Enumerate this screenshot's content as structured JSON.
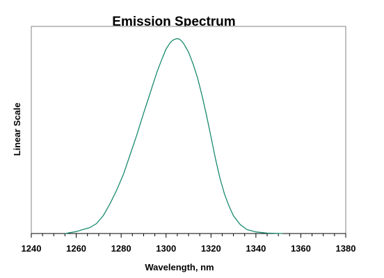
{
  "chart_data": {
    "type": "line",
    "title": "Emission Spectrum",
    "xlabel": "Wavelength, nm",
    "ylabel": "Linear Scale",
    "xlim": [
      1240,
      1380
    ],
    "ylim": [
      0,
      1.05
    ],
    "x_ticks": [
      1240,
      1260,
      1280,
      1300,
      1320,
      1340,
      1360,
      1380
    ],
    "x_minor_step": 5,
    "y_tick_labels_shown": false,
    "grid": false,
    "legend": "none",
    "series": [
      {
        "color": "#1a8a6e",
        "x": [
          1255,
          1260,
          1263,
          1266,
          1269,
          1272,
          1275,
          1278,
          1281,
          1284,
          1287,
          1290,
          1292,
          1294,
          1296,
          1298,
          1300,
          1302,
          1303,
          1304,
          1305,
          1306,
          1307,
          1308,
          1310,
          1312,
          1314,
          1316,
          1318,
          1320,
          1322,
          1324,
          1326,
          1328,
          1330,
          1333,
          1336,
          1340,
          1345,
          1352
        ],
        "y": [
          0.0,
          0.01,
          0.02,
          0.03,
          0.05,
          0.09,
          0.15,
          0.22,
          0.3,
          0.4,
          0.5,
          0.61,
          0.68,
          0.75,
          0.82,
          0.88,
          0.935,
          0.97,
          0.98,
          0.985,
          0.988,
          0.985,
          0.975,
          0.96,
          0.92,
          0.86,
          0.79,
          0.7,
          0.6,
          0.49,
          0.38,
          0.28,
          0.2,
          0.14,
          0.09,
          0.045,
          0.02,
          0.008,
          0.002,
          0.0
        ]
      }
    ]
  }
}
